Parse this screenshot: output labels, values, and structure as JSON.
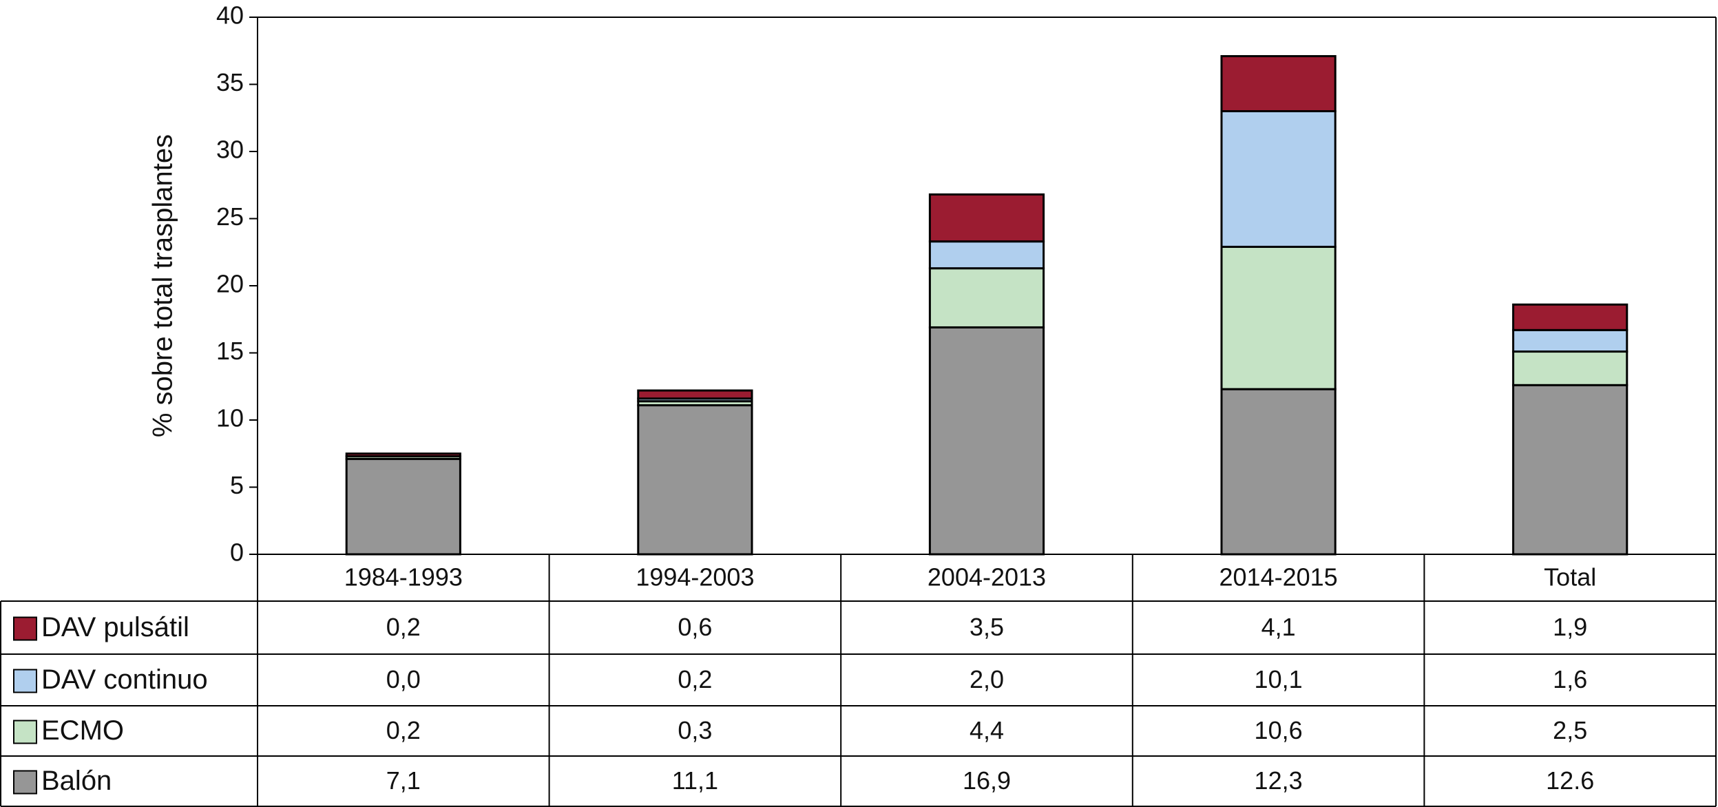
{
  "chart_data": {
    "type": "bar",
    "stacked": true,
    "y_label": "% sobre total trasplantes",
    "categories": [
      "1984-1993",
      "1994-2003",
      "2004-2013",
      "2014-2015",
      "Total"
    ],
    "series": [
      {
        "name": "DAV pulsátil",
        "color": "#9b1c31",
        "values": [
          0.2,
          0.6,
          3.5,
          4.1,
          1.9
        ],
        "value_labels": [
          "0,2",
          "0,6",
          "3,5",
          "4,1",
          "1,9"
        ]
      },
      {
        "name": "DAV continuo",
        "color": "#b0cfee",
        "values": [
          0.0,
          0.2,
          2.0,
          10.1,
          1.6
        ],
        "value_labels": [
          "0,0",
          "0,2",
          "2,0",
          "10,1",
          "1,6"
        ]
      },
      {
        "name": "ECMO",
        "color": "#c5e3c5",
        "values": [
          0.2,
          0.3,
          4.4,
          10.6,
          2.5
        ],
        "value_labels": [
          "0,2",
          "0,3",
          "4,4",
          "10,6",
          "2,5"
        ]
      },
      {
        "name": "Balón",
        "color": "#969696",
        "values": [
          7.1,
          11.1,
          16.9,
          12.3,
          12.6
        ],
        "value_labels": [
          "7,1",
          "11,1",
          "16,9",
          "12,3",
          "12.6"
        ]
      }
    ],
    "ylim": [
      0,
      40
    ],
    "yticks": [
      0,
      5,
      10,
      15,
      20,
      25,
      30,
      35,
      40
    ]
  }
}
